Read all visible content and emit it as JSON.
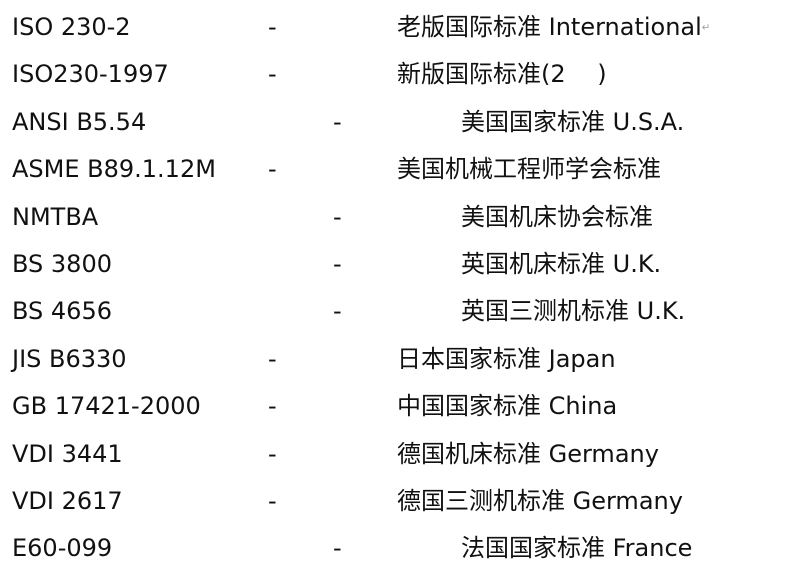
{
  "rows": [
    {
      "code": "ISO 230-2",
      "dash": "-",
      "desc": "老版国际标准 International",
      "indent": false,
      "mark": "↵"
    },
    {
      "code": "ISO230-1997",
      "dash": "-",
      "desc": "新版国际标准(2　 )",
      "indent": false
    },
    {
      "code": "ANSI B5.54",
      "dash": "-",
      "desc": "美国国家标准 U.S.A.",
      "indent": true
    },
    {
      "code": "ASME B89.1.12M",
      "dash": "-",
      "desc": "美国机械工程师学会标准",
      "indent": false
    },
    {
      "code": "NMTBA",
      "dash": "-",
      "desc": "美国机床协会标准",
      "indent": true
    },
    {
      "code": "BS 3800",
      "dash": "-",
      "desc": "英国机床标准 U.K.",
      "indent": true
    },
    {
      "code": "BS 4656",
      "dash": "-",
      "desc": "英国三测机标准 U.K.",
      "indent": true
    },
    {
      "code": "JIS B6330",
      "dash": "-",
      "desc": "日本国家标准 Japan",
      "indent": false
    },
    {
      "code": "GB 17421-2000",
      "dash": "-",
      "desc": "中国国家标准 China",
      "indent": false
    },
    {
      "code": "VDI 3441",
      "dash": "-",
      "desc": "德国机床标准 Germany",
      "indent": false
    },
    {
      "code": "VDI 2617",
      "dash": "-",
      "desc": "德国三测机标准 Germany",
      "indent": false
    },
    {
      "code": "E60-099",
      "dash": "-",
      "desc": "法国国家标准 France",
      "indent": true
    }
  ]
}
